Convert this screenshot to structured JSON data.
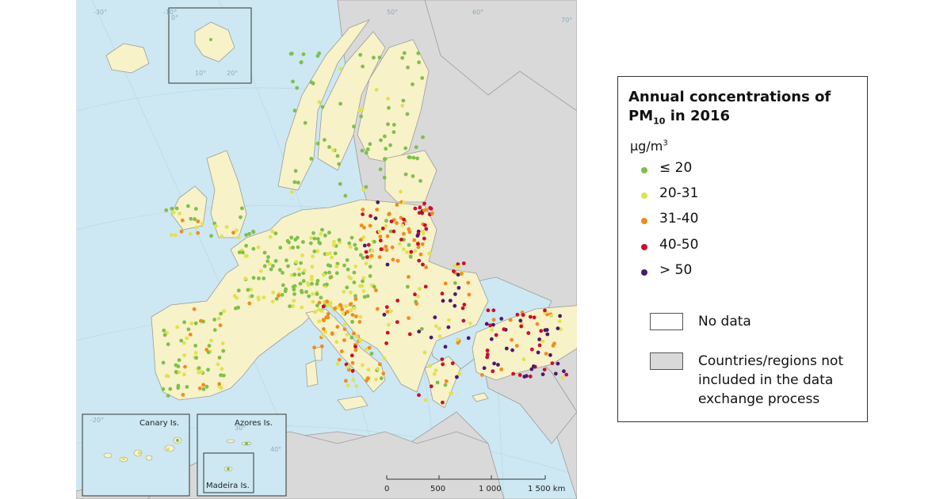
{
  "legend": {
    "title_line1": "Annual concentrations of",
    "title_pm": "PM",
    "title_sub": "10",
    "title_year": " in 2016",
    "unit_base": "µg/m",
    "unit_sup": "3",
    "classes": [
      {
        "label": "≤ 20",
        "color": "#7fbf4d"
      },
      {
        "label": "20-31",
        "color": "#e1e24f"
      },
      {
        "label": "31-40",
        "color": "#f08c1e"
      },
      {
        "label": "40-50",
        "color": "#c8102e"
      },
      {
        "label": "> 50",
        "color": "#4b1a6b"
      }
    ],
    "no_data": {
      "label": "No data",
      "color": "#ffffff"
    },
    "not_included": {
      "label_lines": [
        "Countries/regions not",
        "included in the data",
        "exchange process"
      ],
      "color": "#d9d9d9"
    }
  },
  "map": {
    "colors": {
      "sea": "#cde8f2",
      "data_land": "#f7f2c8",
      "other_land": "#d9d9d9",
      "border": "#9c9c9c"
    },
    "insets": [
      "Canary Is.",
      "Azores Is.",
      "Madeira Is."
    ],
    "scalebar": [
      "0",
      "500",
      "1 000",
      "1 500 km"
    ],
    "graticule_labels": [
      "-30°",
      "-20°",
      "-10°",
      "0°",
      "10°",
      "20°",
      "30°",
      "40°",
      "50°",
      "60°",
      "70°"
    ]
  }
}
